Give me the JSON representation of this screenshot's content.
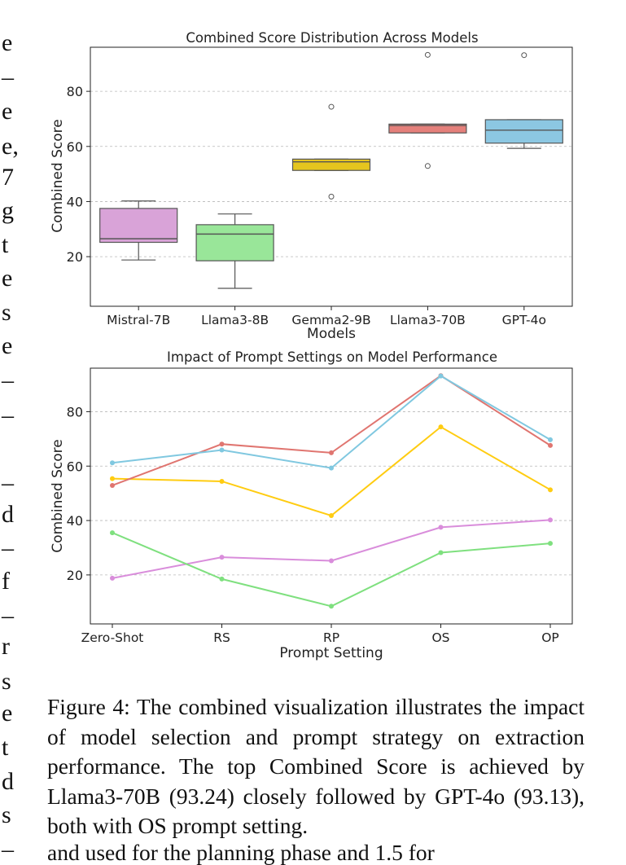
{
  "left_fragments": [
    "e",
    "–",
    "e",
    "e,",
    "7",
    "g",
    "t",
    "e",
    "s",
    "e",
    "–",
    "–",
    "–",
    "d",
    "–",
    "f",
    "–",
    "r",
    "s",
    "e",
    "t",
    "d",
    "s",
    "–"
  ],
  "chart_data": [
    {
      "type": "box",
      "title": "Combined Score Distribution Across Models",
      "xlabel": "Models",
      "ylabel": "Combined Score",
      "ylim": [
        2,
        96
      ],
      "yticks": [
        20,
        40,
        60,
        80
      ],
      "grid": "horizontal",
      "categories": [
        "Mistral-7B",
        "Llama3-8B",
        "Gemma2-9B",
        "Llama3-70B",
        "GPT-4o"
      ],
      "boxes": [
        {
          "name": "Mistral-7B",
          "color": "#D9A3D8",
          "whisker_low": 18.8,
          "q1": 25.2,
          "median": 26.5,
          "q3": 37.5,
          "whisker_high": 40.2,
          "outliers": []
        },
        {
          "name": "Llama3-8B",
          "color": "#99E699",
          "whisker_low": 8.5,
          "q1": 18.5,
          "median": 28.2,
          "q3": 31.6,
          "whisker_high": 35.5,
          "outliers": []
        },
        {
          "name": "Gemma2-9B",
          "color": "#E5C51E",
          "whisker_low": 51.3,
          "q1": 51.3,
          "median": 54.4,
          "q3": 55.4,
          "whisker_high": 55.4,
          "outliers": [
            41.8,
            74.4
          ]
        },
        {
          "name": "Llama3-70B",
          "color": "#E5807B",
          "whisker_low": 64.9,
          "q1": 64.9,
          "median": 67.6,
          "q3": 68.1,
          "whisker_high": 68.1,
          "outliers": [
            52.9,
            93.24
          ]
        },
        {
          "name": "GPT-4o",
          "color": "#8CC7E2",
          "whisker_low": 59.3,
          "q1": 61.2,
          "median": 65.9,
          "q3": 69.7,
          "whisker_high": 69.7,
          "outliers": [
            93.13
          ]
        }
      ]
    },
    {
      "type": "line",
      "title": "Impact of Prompt Settings on Model Performance",
      "xlabel": "Prompt Setting",
      "ylabel": "Combined Score",
      "ylim": [
        2,
        96
      ],
      "yticks": [
        20,
        40,
        60,
        80
      ],
      "grid": "horizontal",
      "categories": [
        "Zero-Shot",
        "RS",
        "RP",
        "OS",
        "OP"
      ],
      "series": [
        {
          "color": "#D98DDB",
          "values": [
            18.8,
            26.5,
            25.2,
            37.5,
            40.2
          ]
        },
        {
          "color": "#7FE07F",
          "values": [
            35.5,
            18.5,
            8.5,
            28.2,
            31.6
          ]
        },
        {
          "color": "#FFCC11",
          "values": [
            55.4,
            54.4,
            41.8,
            74.4,
            51.3
          ]
        },
        {
          "color": "#E07570",
          "values": [
            52.9,
            68.1,
            64.9,
            93.24,
            67.6
          ]
        },
        {
          "color": "#80C8E0",
          "values": [
            61.2,
            65.9,
            59.3,
            93.13,
            69.7
          ]
        }
      ]
    }
  ],
  "caption": "Figure 4: The combined visualization illustrates the impact of model selection and prompt strategy on extraction performance. The top Combined Score is achieved by Llama3-70B (93.24) closely followed by GPT-4o (93.13), both with OS prompt setting.",
  "bottom_cut_text": "and used for the planning phase and 1.5 for"
}
